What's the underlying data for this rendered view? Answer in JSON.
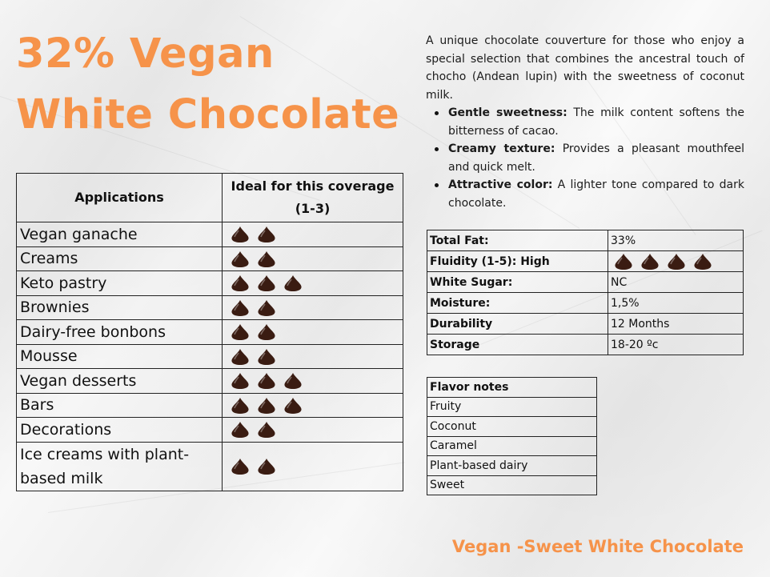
{
  "title_line1": "32% Vegan",
  "title_line2": "White Chocolate",
  "description": "A unique chocolate couverture for those who enjoy a special selection that combines the ancestral touch of chocho (Andean lupin) with the sweetness of coconut milk.",
  "bullets": [
    {
      "label": "Gentle sweetness:",
      "text": " The milk content softens the bitterness of cacao."
    },
    {
      "label": "Creamy texture:",
      "text": " Provides a pleasant mouthfeel and quick melt."
    },
    {
      "label": "Attractive color:",
      "text": " A lighter tone compared to dark chocolate."
    }
  ],
  "applications": {
    "header_app": "Applications",
    "header_ideal": "Ideal for this coverage (1-3)",
    "rows": [
      {
        "name": "Vegan ganache",
        "rating": 2
      },
      {
        "name": "Creams",
        "rating": 2
      },
      {
        "name": "Keto pastry",
        "rating": 3
      },
      {
        "name": "Brownies",
        "rating": 2
      },
      {
        "name": "Dairy-free bonbons",
        "rating": 2
      },
      {
        "name": "Mousse",
        "rating": 2
      },
      {
        "name": "Vegan desserts",
        "rating": 3
      },
      {
        "name": "Bars",
        "rating": 3
      },
      {
        "name": "Decorations",
        "rating": 2
      },
      {
        "name": "Ice creams with plant-based milk",
        "rating": 2
      }
    ]
  },
  "specs": [
    {
      "key": "Total Fat:",
      "value": "33%"
    },
    {
      "key": "Fluidity (1-5): High",
      "value": "",
      "rating": 4
    },
    {
      "key": "White Sugar:",
      "value": "NC"
    },
    {
      "key": "Moisture:",
      "value": "1,5%"
    },
    {
      "key": "Durability",
      "value": "12 Months"
    },
    {
      "key": "Storage",
      "value": "18-20 ºc"
    }
  ],
  "flavor": {
    "header": "Flavor notes",
    "items": [
      "Fruity",
      "Coconut",
      "Caramel",
      "Plant-based dairy",
      "Sweet"
    ]
  },
  "footer": "Vegan -Sweet White Chocolate",
  "colors": {
    "accent": "#f6934a",
    "drop": "#3a1c12"
  },
  "icons": {
    "rating": "chocolate-drop-icon"
  }
}
